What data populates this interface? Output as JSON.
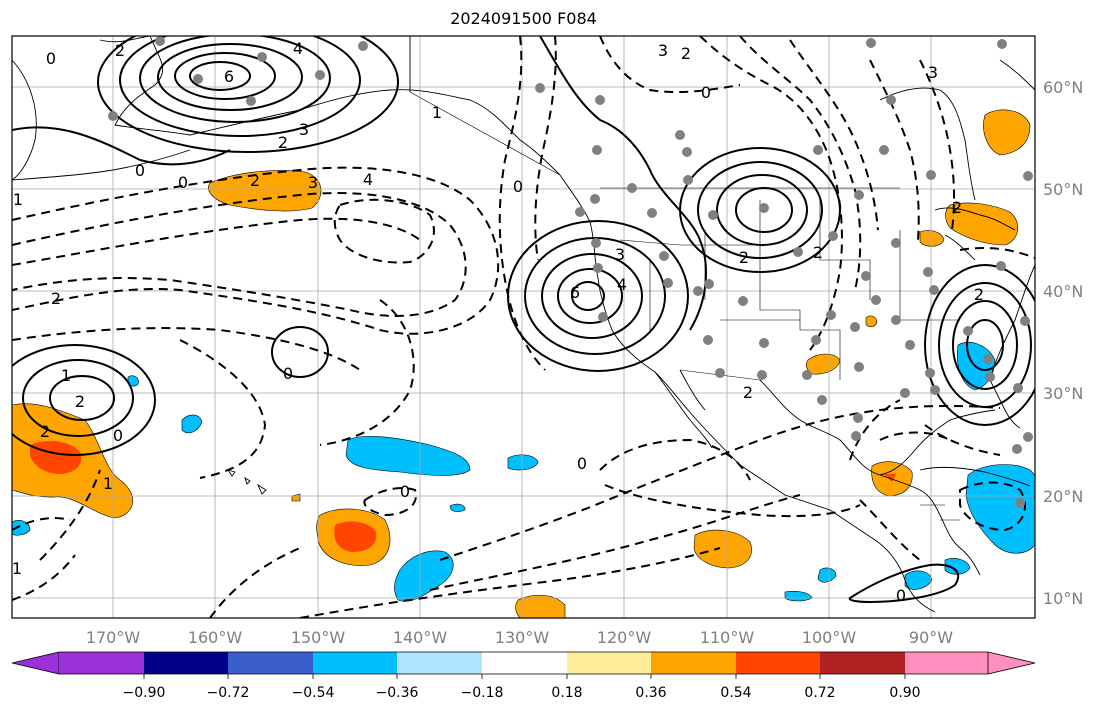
{
  "title": "2024091500 F084",
  "lon_labels": [
    "170°W",
    "160°W",
    "150°W",
    "140°W",
    "130°W",
    "120°W",
    "110°W",
    "100°W",
    "90°W"
  ],
  "lat_labels": [
    "60°N",
    "50°N",
    "40°N",
    "30°N",
    "20°N",
    "10°N"
  ],
  "colorbar": {
    "ticks": [
      "−0.90",
      "−0.72",
      "−0.54",
      "−0.36",
      "−0.18",
      "0.18",
      "0.36",
      "0.54",
      "0.72",
      "0.90"
    ],
    "colors": [
      "#9b30d9",
      "#00008b",
      "#3a5fcd",
      "#00bfff",
      "#afe3ff",
      "#ffffff",
      "#ffee99",
      "#ffa500",
      "#ff4500",
      "#b22222",
      "#ff8fbf"
    ]
  },
  "contour_labels": [
    "0",
    "4",
    "6",
    "2",
    "3",
    "0",
    "1",
    "2",
    "3",
    "4",
    "0",
    "1",
    "3",
    "2",
    "2",
    "0",
    "3",
    "6",
    "4",
    "2",
    "1",
    "2",
    "2",
    "0",
    "2",
    "0",
    "1",
    "2",
    "0",
    "0",
    "2",
    "1",
    "2",
    "0",
    "3",
    "2",
    "0"
  ],
  "colors": {
    "orange": "#ffa500",
    "red_orange": "#ff4500",
    "light_blue": "#00bfff",
    "dot": "#808080"
  }
}
